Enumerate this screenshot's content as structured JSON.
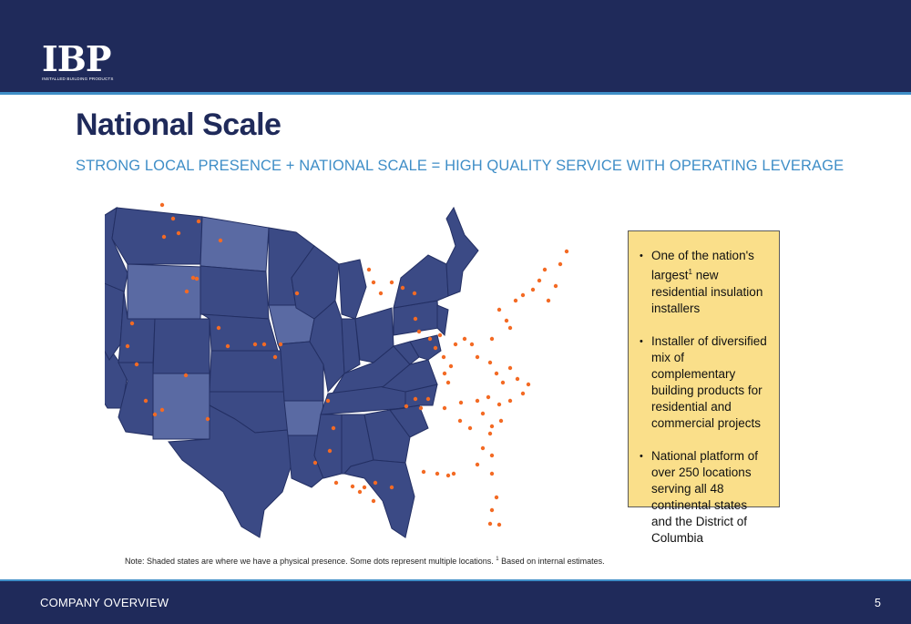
{
  "logo": {
    "mark": "IBP",
    "sub": "INSTALLED BUILDING PRODUCTS"
  },
  "title": "National Scale",
  "subtitle": "STRONG LOCAL PRESENCE + NATIONAL SCALE = HIGH QUALITY SERVICE WITH OPERATING LEVERAGE",
  "map": {
    "state_fill": "#3b4a85",
    "unshaded_fill": "#5a6aa3",
    "border_color": "#232f63",
    "dot_color": "#f36a24"
  },
  "callout": {
    "bullets": [
      {
        "pre": "One of the nation's largest",
        "sup": "1",
        "post": " new residential insulation installers"
      },
      {
        "pre": "Installer of diversified mix of complementary building products for residential and commercial projects",
        "sup": "",
        "post": ""
      },
      {
        "pre": "National platform of over 250 locations serving all 48 continental states and the District of Columbia",
        "sup": "",
        "post": ""
      }
    ],
    "bullet_char": "•"
  },
  "note": {
    "pre": "Note: Shaded states are where we have a physical presence. Some dots represent multiple locations.",
    "sup": "1",
    "post": " Based on internal estimates."
  },
  "footer": {
    "label": "COMPANY OVERVIEW",
    "page": "5"
  }
}
